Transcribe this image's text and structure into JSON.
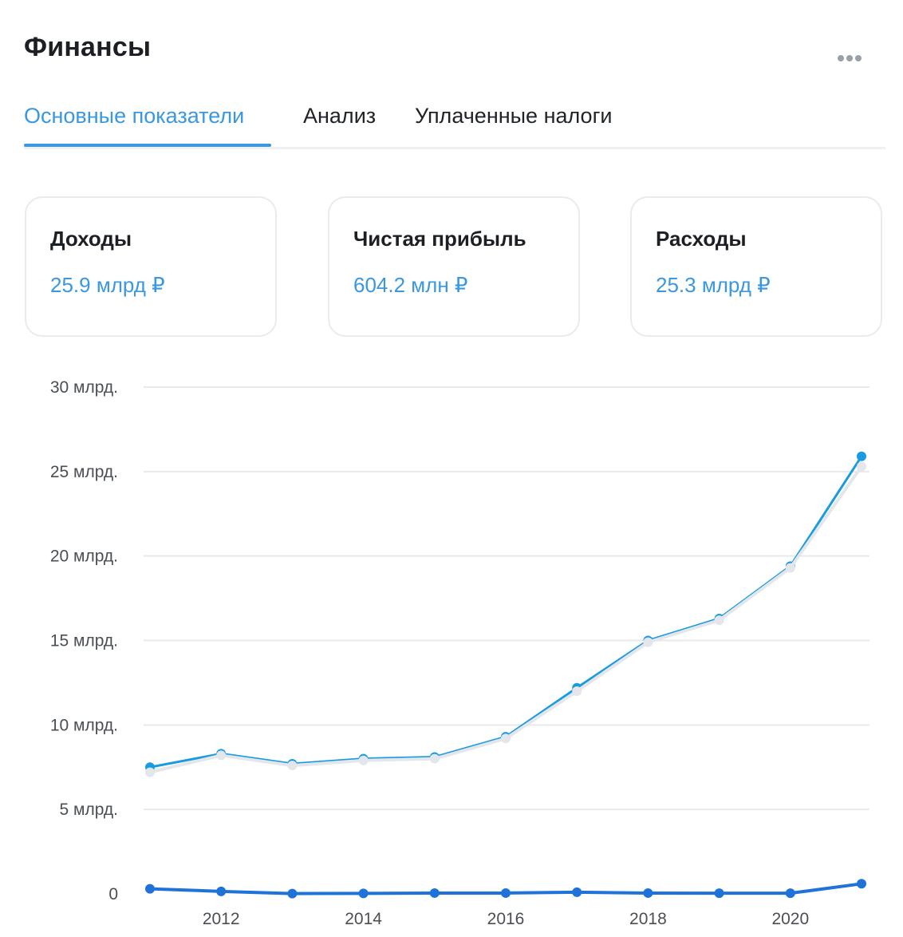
{
  "header": {
    "title": "Финансы",
    "menu_icon": "more-horizontal-icon"
  },
  "tabs": [
    {
      "label": "Основные показатели",
      "active": true
    },
    {
      "label": "Анализ",
      "active": false
    },
    {
      "label": "Уплаченные налоги",
      "active": false
    }
  ],
  "cards": [
    {
      "label": "Доходы",
      "value": "25.9 млрд ₽"
    },
    {
      "label": "Чистая прибыль",
      "value": "604.2 млн ₽"
    },
    {
      "label": "Расходы",
      "value": "25.3 млрд ₽"
    }
  ],
  "colors": {
    "accent": "#3a97e0",
    "income_line": "#1a9be0",
    "expense_line": "#e3e6ea",
    "profit_line": "#1f72d8",
    "grid": "#e7e9ec"
  },
  "chart_data": {
    "type": "line",
    "x": [
      2011,
      2012,
      2013,
      2014,
      2015,
      2016,
      2017,
      2018,
      2019,
      2020,
      2021
    ],
    "x_tick_labels": [
      "2012",
      "2014",
      "2016",
      "2018",
      "2020"
    ],
    "y_tick_labels": [
      "0",
      "5 млрд.",
      "10 млрд.",
      "15 млрд.",
      "20 млрд.",
      "25 млрд.",
      "30 млрд."
    ],
    "ylim": [
      0,
      30
    ],
    "y_unit": "млрд",
    "grid": true,
    "series": [
      {
        "name": "Доходы",
        "values": [
          7.5,
          8.3,
          7.7,
          8.0,
          8.1,
          9.3,
          12.2,
          15.0,
          16.3,
          19.4,
          25.9
        ]
      },
      {
        "name": "Расходы",
        "values": [
          7.2,
          8.2,
          7.6,
          7.9,
          8.0,
          9.2,
          12.0,
          14.9,
          16.2,
          19.3,
          25.3
        ]
      },
      {
        "name": "Чистая прибыль",
        "values": [
          0.3,
          0.15,
          0.02,
          0.03,
          0.05,
          0.05,
          0.1,
          0.05,
          0.04,
          0.04,
          0.6
        ]
      }
    ]
  }
}
